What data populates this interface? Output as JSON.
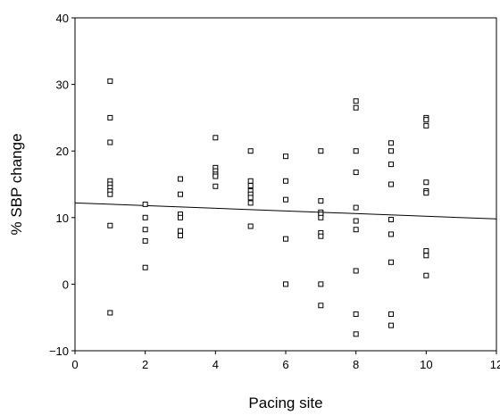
{
  "chart_data": {
    "type": "scatter",
    "title": "",
    "xlabel": "Pacing site",
    "ylabel": "% SBP change",
    "xlim": [
      0,
      12
    ],
    "ylim": [
      -10,
      40
    ],
    "xticks": [
      "0",
      "2",
      "4",
      "6",
      "8",
      "10",
      "12"
    ],
    "yticks": [
      "−10",
      "0",
      "10",
      "20",
      "30",
      "40"
    ],
    "grid": false,
    "legend": "none",
    "marker": "open-square",
    "series": [
      {
        "points": [
          [
            1,
            30.5
          ],
          [
            1,
            25
          ],
          [
            1,
            21.3
          ],
          [
            1,
            15.5
          ],
          [
            1,
            15
          ],
          [
            1,
            14.5
          ],
          [
            1,
            14
          ],
          [
            1,
            13.5
          ],
          [
            1,
            8.8
          ],
          [
            1,
            -4.3
          ],
          [
            2,
            12
          ],
          [
            2,
            10
          ],
          [
            2,
            8.2
          ],
          [
            2,
            6.5
          ],
          [
            2,
            2.5
          ],
          [
            3,
            15.8
          ],
          [
            3,
            13.5
          ],
          [
            3,
            10.5
          ],
          [
            3,
            10
          ],
          [
            3,
            8
          ],
          [
            3,
            7.3
          ],
          [
            4,
            22
          ],
          [
            4,
            17.5
          ],
          [
            4,
            17
          ],
          [
            4,
            16.5
          ],
          [
            4,
            16.2
          ],
          [
            4,
            14.7
          ],
          [
            5,
            20
          ],
          [
            5,
            15.5
          ],
          [
            5,
            14.8
          ],
          [
            5,
            14
          ],
          [
            5,
            13.5
          ],
          [
            5,
            13
          ],
          [
            5,
            12.2
          ],
          [
            5,
            8.7
          ],
          [
            6,
            19.2
          ],
          [
            6,
            15.5
          ],
          [
            6,
            12.7
          ],
          [
            6,
            6.8
          ],
          [
            6,
            0
          ],
          [
            7,
            20
          ],
          [
            7,
            12.5
          ],
          [
            7,
            10.8
          ],
          [
            7,
            10.5
          ],
          [
            7,
            10
          ],
          [
            7,
            7.7
          ],
          [
            7,
            7.2
          ],
          [
            7,
            0
          ],
          [
            7,
            -3.2
          ],
          [
            8,
            27.5
          ],
          [
            8,
            26.5
          ],
          [
            8,
            20
          ],
          [
            8,
            16.8
          ],
          [
            8,
            11.5
          ],
          [
            8,
            9.5
          ],
          [
            8,
            8.2
          ],
          [
            8,
            2
          ],
          [
            8,
            -4.5
          ],
          [
            8,
            -7.5
          ],
          [
            9,
            21.2
          ],
          [
            9,
            20
          ],
          [
            9,
            18
          ],
          [
            9,
            15
          ],
          [
            9,
            9.7
          ],
          [
            9,
            7.5
          ],
          [
            9,
            3.3
          ],
          [
            9,
            -4.5
          ],
          [
            9,
            -6.2
          ],
          [
            10,
            25
          ],
          [
            10,
            24.7
          ],
          [
            10,
            23.8
          ],
          [
            10,
            15.3
          ],
          [
            10,
            14
          ],
          [
            10,
            13.7
          ],
          [
            10,
            5
          ],
          [
            10,
            4.3
          ],
          [
            10,
            1.3
          ]
        ]
      }
    ],
    "trendline": {
      "x": [
        0,
        12
      ],
      "y": [
        12.2,
        9.8
      ]
    },
    "colors": {
      "marker": "#000000",
      "axis": "#000000",
      "line": "#000000"
    }
  }
}
